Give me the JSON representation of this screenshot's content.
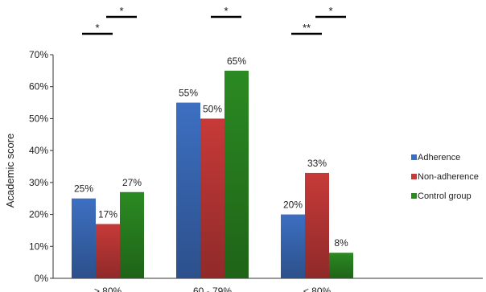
{
  "chart_data": {
    "type": "bar",
    "categories": [
      "> 80%",
      "60 - 79%",
      "< 80%"
    ],
    "series": [
      {
        "name": "Adherence",
        "values": [
          25,
          55,
          20
        ],
        "labels": [
          "25%",
          "55%",
          "20%"
        ],
        "color": "#3d6fc1"
      },
      {
        "name": "Non-adherence",
        "values": [
          17,
          50,
          33
        ],
        "labels": [
          "17%",
          "50%",
          "33%"
        ],
        "color": "#c63a39"
      },
      {
        "name": "Control group",
        "values": [
          27,
          65,
          8
        ],
        "labels": [
          "27%",
          "65%",
          "8%"
        ],
        "color": "#2b8a22"
      }
    ],
    "ylabel": "Academic score",
    "ylim": [
      0,
      70
    ],
    "yticks": [
      "0%",
      "10%",
      "20%",
      "30%",
      "40%",
      "50%",
      "60%",
      "70%"
    ],
    "grid": false,
    "legend_position": "right",
    "significance": [
      {
        "category": 0,
        "from_series": 0,
        "to_series": 1,
        "label": "*",
        "level": 1
      },
      {
        "category": 0,
        "from_series": 1,
        "to_series": 2,
        "label": "*",
        "level": 2
      },
      {
        "category": 1,
        "from_series": 1,
        "to_series": 2,
        "label": "*",
        "level": 2
      },
      {
        "category": 2,
        "from_series": 0,
        "to_series": 1,
        "label": "**",
        "level": 1
      },
      {
        "category": 2,
        "from_series": 1,
        "to_series": 2,
        "label": "*",
        "level": 2
      }
    ]
  }
}
